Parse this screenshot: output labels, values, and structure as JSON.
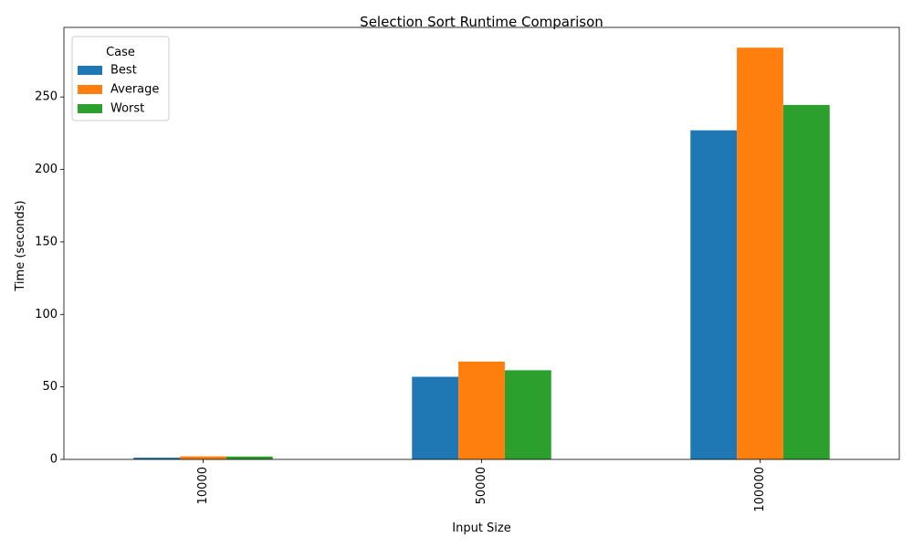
{
  "chart_data": {
    "type": "bar",
    "title": "Selection Sort Runtime Comparison",
    "xlabel": "Input Size",
    "ylabel": "Time (seconds)",
    "categories": [
      "10000",
      "50000",
      "100000"
    ],
    "series": [
      {
        "name": "Best",
        "color": "#1f77b4",
        "values": [
          1.2,
          57.0,
          227.0
        ]
      },
      {
        "name": "Average",
        "color": "#ff7f0e",
        "values": [
          2.1,
          67.5,
          284.0
        ]
      },
      {
        "name": "Worst",
        "color": "#2ca02c",
        "values": [
          2.0,
          61.5,
          244.5
        ]
      }
    ],
    "ylim": [
      0,
      298
    ],
    "yticks": [
      0,
      50,
      100,
      150,
      200,
      250
    ],
    "grid": false,
    "legend": {
      "title": "Case",
      "position": "top-left"
    }
  }
}
